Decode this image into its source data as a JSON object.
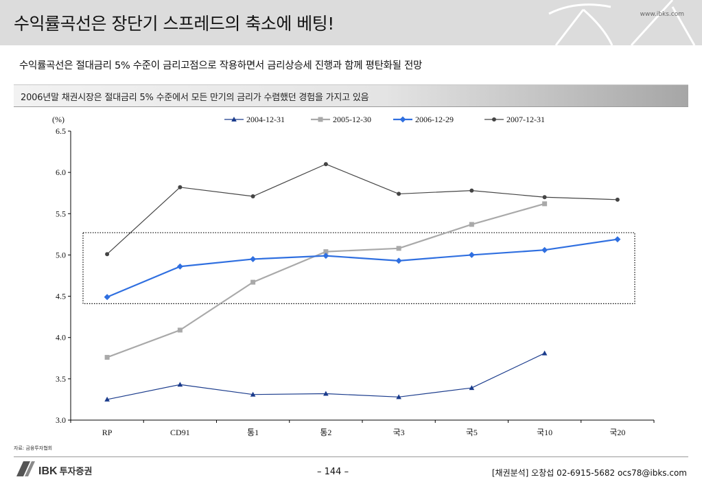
{
  "header": {
    "title": "수익률곡선은 장단기 스프레드의 축소에 베팅!",
    "site": "www.ibks.com"
  },
  "subtitle": "수익률곡선은 절대금리 5% 수준이 금리고점으로 작용하면서 금리상승세 진행과 함께 평탄화될 전망",
  "band_text": "2006년말 채권시장은 절대금리 5% 수준에서 모든 만기의 금리가 수렴했던 경험을 가지고 있음",
  "chart_data": {
    "type": "line",
    "unit_label": "(%)",
    "categories": [
      "RP",
      "CD91",
      "통1",
      "통2",
      "국3",
      "국5",
      "국10",
      "국20"
    ],
    "ylim": [
      3.0,
      6.5
    ],
    "yticks": [
      "3.0",
      "3.5",
      "4.0",
      "4.5",
      "5.0",
      "5.5",
      "6.0",
      "6.5"
    ],
    "legend_position": "top",
    "grid": false,
    "highlight_box": {
      "y_range": [
        4.41,
        5.27
      ]
    },
    "series": [
      {
        "name": "2004-12-31",
        "color": "#1a3b8c",
        "marker": "triangle",
        "width": 1.2,
        "values": [
          3.25,
          3.43,
          3.31,
          3.32,
          3.28,
          3.39,
          3.81,
          null
        ]
      },
      {
        "name": "2005-12-30",
        "color": "#a9a9a9",
        "marker": "square",
        "width": 2.2,
        "values": [
          3.76,
          4.09,
          4.67,
          5.04,
          5.08,
          5.37,
          5.62,
          null
        ]
      },
      {
        "name": "2006-12-29",
        "color": "#2f6fe0",
        "marker": "diamond",
        "width": 2.2,
        "values": [
          4.49,
          4.86,
          4.95,
          4.99,
          4.93,
          5.0,
          5.06,
          5.19
        ]
      },
      {
        "name": "2007-12-31",
        "color": "#444444",
        "marker": "circle",
        "width": 1.2,
        "values": [
          5.01,
          5.82,
          5.71,
          6.1,
          5.74,
          5.78,
          5.7,
          5.67
        ]
      }
    ]
  },
  "source_note": "자료: 금융투자협회",
  "footer": {
    "logo_main": "IBK",
    "logo_sub": "투자증권",
    "page_number": "– 144 –",
    "contact": "[채권분석] 오창섭 02-6915-5682 ocs78@ibks.com"
  }
}
